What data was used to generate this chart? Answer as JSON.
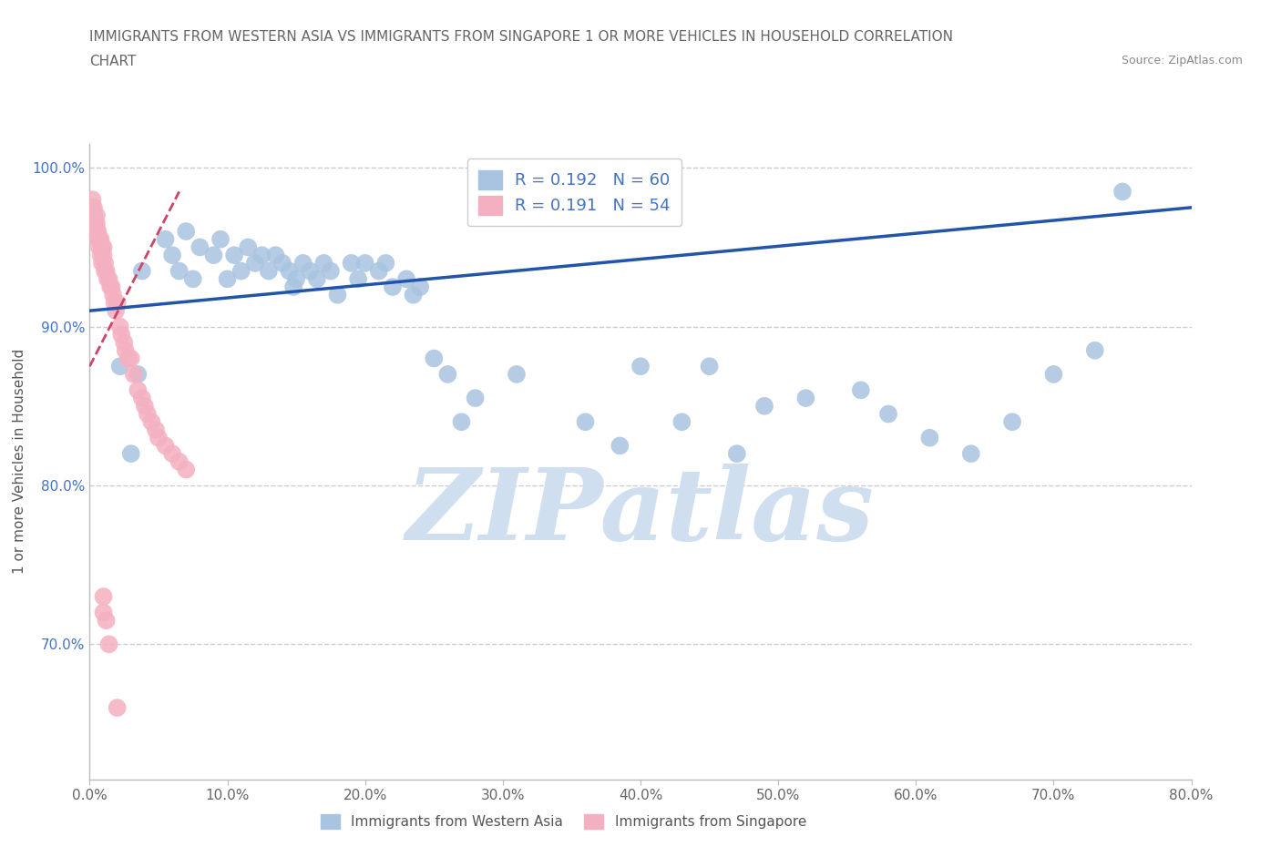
{
  "title_line1": "IMMIGRANTS FROM WESTERN ASIA VS IMMIGRANTS FROM SINGAPORE 1 OR MORE VEHICLES IN HOUSEHOLD CORRELATION",
  "title_line2": "CHART",
  "source_text": "Source: ZipAtlas.com",
  "ylabel": "1 or more Vehicles in Household",
  "xmin": 0.0,
  "xmax": 0.8,
  "ymin": 0.615,
  "ymax": 1.015,
  "xtick_labels": [
    "0.0%",
    "10.0%",
    "20.0%",
    "30.0%",
    "40.0%",
    "50.0%",
    "60.0%",
    "70.0%",
    "80.0%"
  ],
  "xtick_values": [
    0.0,
    0.1,
    0.2,
    0.3,
    0.4,
    0.5,
    0.6,
    0.7,
    0.8
  ],
  "ytick_labels": [
    "70.0%",
    "80.0%",
    "90.0%",
    "100.0%"
  ],
  "ytick_values": [
    0.7,
    0.8,
    0.9,
    1.0
  ],
  "R_blue": 0.192,
  "N_blue": 60,
  "R_pink": 0.191,
  "N_pink": 54,
  "blue_color": "#a8c4e0",
  "pink_color": "#f4b0c0",
  "blue_line_color": "#2255aa",
  "pink_line_color": "#cc4466",
  "watermark_text": "ZIPatlas",
  "watermark_color": "#d0dff0",
  "blue_x": [
    0.022,
    0.03,
    0.035,
    0.038,
    0.055,
    0.06,
    0.065,
    0.07,
    0.075,
    0.08,
    0.09,
    0.095,
    0.1,
    0.105,
    0.11,
    0.115,
    0.12,
    0.125,
    0.13,
    0.135,
    0.14,
    0.145,
    0.148,
    0.15,
    0.155,
    0.16,
    0.165,
    0.17,
    0.175,
    0.18,
    0.19,
    0.195,
    0.2,
    0.21,
    0.215,
    0.22,
    0.23,
    0.235,
    0.24,
    0.25,
    0.26,
    0.27,
    0.28,
    0.31,
    0.36,
    0.385,
    0.4,
    0.43,
    0.45,
    0.47,
    0.49,
    0.52,
    0.56,
    0.58,
    0.61,
    0.64,
    0.67,
    0.7,
    0.73,
    0.75
  ],
  "blue_y": [
    0.875,
    0.82,
    0.87,
    0.935,
    0.955,
    0.945,
    0.935,
    0.96,
    0.93,
    0.95,
    0.945,
    0.955,
    0.93,
    0.945,
    0.935,
    0.95,
    0.94,
    0.945,
    0.935,
    0.945,
    0.94,
    0.935,
    0.925,
    0.93,
    0.94,
    0.935,
    0.93,
    0.94,
    0.935,
    0.92,
    0.94,
    0.93,
    0.94,
    0.935,
    0.94,
    0.925,
    0.93,
    0.92,
    0.925,
    0.88,
    0.87,
    0.84,
    0.855,
    0.87,
    0.84,
    0.825,
    0.875,
    0.84,
    0.875,
    0.82,
    0.85,
    0.855,
    0.86,
    0.845,
    0.83,
    0.82,
    0.84,
    0.87,
    0.885,
    0.985
  ],
  "pink_x": [
    0.002,
    0.002,
    0.003,
    0.003,
    0.003,
    0.004,
    0.004,
    0.005,
    0.005,
    0.005,
    0.006,
    0.006,
    0.007,
    0.007,
    0.008,
    0.008,
    0.009,
    0.009,
    0.01,
    0.01,
    0.011,
    0.011,
    0.012,
    0.013,
    0.014,
    0.015,
    0.016,
    0.017,
    0.018,
    0.019,
    0.02,
    0.022,
    0.023,
    0.025,
    0.026,
    0.028,
    0.03,
    0.032,
    0.035,
    0.038,
    0.04,
    0.042,
    0.045,
    0.048,
    0.05,
    0.055,
    0.06,
    0.065,
    0.07,
    0.01,
    0.01,
    0.012,
    0.014,
    0.02
  ],
  "pink_y": [
    0.98,
    0.975,
    0.975,
    0.97,
    0.965,
    0.965,
    0.96,
    0.97,
    0.965,
    0.96,
    0.96,
    0.955,
    0.955,
    0.95,
    0.955,
    0.945,
    0.95,
    0.94,
    0.95,
    0.945,
    0.94,
    0.935,
    0.935,
    0.93,
    0.93,
    0.925,
    0.925,
    0.92,
    0.915,
    0.91,
    0.915,
    0.9,
    0.895,
    0.89,
    0.885,
    0.88,
    0.88,
    0.87,
    0.86,
    0.855,
    0.85,
    0.845,
    0.84,
    0.835,
    0.83,
    0.825,
    0.82,
    0.815,
    0.81,
    0.73,
    0.72,
    0.715,
    0.7,
    0.66
  ]
}
